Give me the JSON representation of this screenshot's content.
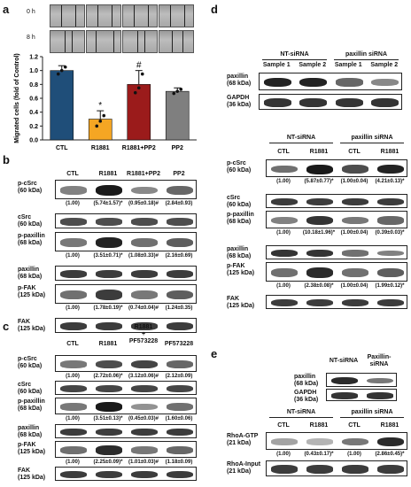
{
  "panels": {
    "a": {
      "letter": "a",
      "rows": [
        "0 h",
        "8 h"
      ],
      "chart_data": {
        "type": "bar",
        "categories": [
          "CTL",
          "R1881",
          "R1881+PP2",
          "PP2"
        ],
        "values": [
          1.0,
          0.3,
          0.8,
          0.7
        ],
        "errors": [
          0.07,
          0.12,
          0.2,
          0.05
        ],
        "dots": [
          [
            0.95,
            1.0,
            1.05
          ],
          [
            0.2,
            0.27,
            0.35
          ],
          [
            0.68,
            0.75,
            0.95
          ],
          [
            0.67,
            0.7,
            0.73
          ]
        ],
        "colors": [
          "#1f4e79",
          "#f5a623",
          "#9b1b1b",
          "#7f7f7f"
        ],
        "ylabel": "Migrated cells (fold of Control)",
        "ylim": [
          0,
          1.2
        ],
        "yticks": [
          "0.0",
          "0.2",
          "0.4",
          "0.6",
          "0.8",
          "1.0",
          "1.2"
        ],
        "annotations": [
          "",
          "*",
          "#",
          ""
        ]
      }
    },
    "b": {
      "letter": "b",
      "headers": [
        "CTL",
        "R1881",
        "R1881+PP2",
        "PP2"
      ],
      "blots": [
        {
          "label": "p-cSrc\n(60 kDa)",
          "intensities": [
            0.4,
            1.0,
            0.35,
            0.55
          ]
        },
        {
          "label": "cSrc\n(60 kDa)",
          "intensities": [
            0.7,
            0.7,
            0.7,
            0.7
          ]
        },
        {
          "label": "p-paxillin\n(68 kDa)",
          "intensities": [
            0.45,
            0.95,
            0.5,
            0.6
          ]
        },
        {
          "label": "paxillin\n(68 kDa)",
          "intensities": [
            0.8,
            0.8,
            0.8,
            0.8
          ]
        },
        {
          "label": "p-FAK\n(125 kDa)",
          "intensities": [
            0.5,
            0.8,
            0.45,
            0.6
          ]
        },
        {
          "label": "FAK\n(125 kDa)",
          "intensities": [
            0.8,
            0.8,
            0.8,
            0.8
          ]
        }
      ],
      "quant": {
        "0": [
          "(1.00)",
          "(5.74±1.57)*",
          "(0.95±0.18)#",
          "(2.84±0.93)"
        ],
        "2": [
          "(1.00)",
          "(3.51±0.71)*",
          "(1.08±0.33)#",
          "(2.16±0.69)"
        ],
        "4": [
          "(1.00)",
          "(1.78±0.19)*",
          "(0.74±0.04)#",
          "(1.24±0.35)"
        ]
      }
    },
    "c": {
      "letter": "c",
      "headers": [
        "CTL",
        "R1881",
        "R1881\n+\nPF573228",
        "PF573228"
      ],
      "blots": [
        {
          "label": "p-cSrc\n(60 kDa)",
          "intensities": [
            0.45,
            0.7,
            0.75,
            0.55
          ]
        },
        {
          "label": "cSrc\n(60 kDa)",
          "intensities": [
            0.75,
            0.75,
            0.75,
            0.75
          ]
        },
        {
          "label": "p-paxillin\n(68 kDa)",
          "intensities": [
            0.45,
            1.0,
            0.3,
            0.5
          ]
        },
        {
          "label": "paxillin\n(68 kDa)",
          "intensities": [
            0.8,
            0.8,
            0.8,
            0.8
          ]
        },
        {
          "label": "p-FAK\n(125 kDa)",
          "intensities": [
            0.5,
            0.9,
            0.45,
            0.55
          ]
        },
        {
          "label": "FAK\n(125 kDa)",
          "intensities": [
            0.8,
            0.8,
            0.8,
            0.8
          ]
        }
      ],
      "quant": {
        "0": [
          "(1.00)",
          "(2.72±0.06)*",
          "(3.12±0.06)#",
          "(2.12±0.09)"
        ],
        "2": [
          "(1.00)",
          "(3.51±0.13)*",
          "(0.45±0.03)#",
          "(1.60±0.06)"
        ],
        "4": [
          "(1.00)",
          "(2.25±0.09)*",
          "(1.01±0.03)#",
          "(1.18±0.09)"
        ]
      }
    },
    "d": {
      "letter": "d",
      "top": {
        "groups": [
          "NT-siRNA",
          "paxillin siRNA"
        ],
        "samples": [
          "Sample 1",
          "Sample 2",
          "Sample 1",
          "Sample 2"
        ],
        "blots": [
          {
            "label": "paxillin\n(68 kDa)",
            "intensities": [
              0.95,
              0.95,
              0.55,
              0.35
            ]
          },
          {
            "label": "GAPDH\n(36 kDa)",
            "intensities": [
              0.85,
              0.85,
              0.85,
              0.85
            ]
          }
        ]
      },
      "bottom": {
        "groups": [
          "NT-siRNA",
          "paxillin siRNA"
        ],
        "lanes": [
          "CTL",
          "R1881",
          "CTL",
          "R1881"
        ],
        "blots": [
          {
            "label": "p-cSrc\n(60 kDa)",
            "intensities": [
              0.5,
              1.0,
              0.7,
              0.95
            ]
          },
          {
            "label": "cSrc\n(60 kDa)",
            "intensities": [
              0.8,
              0.8,
              0.8,
              0.8
            ]
          },
          {
            "label": "p-paxillin\n(68 kDa)",
            "intensities": [
              0.4,
              0.85,
              0.45,
              0.55
            ]
          },
          {
            "label": "paxillin\n(68 kDa)",
            "intensities": [
              0.85,
              0.85,
              0.5,
              0.4
            ]
          },
          {
            "label": "p-FAK\n(125 kDa)",
            "intensities": [
              0.5,
              0.9,
              0.5,
              0.6
            ]
          },
          {
            "label": "FAK\n(125 kDa)",
            "intensities": [
              0.8,
              0.8,
              0.8,
              0.8
            ]
          }
        ],
        "quant": {
          "0": [
            "(1.00)",
            "(5.87±0.77)*",
            "(1.00±0.04)",
            "(4.21±0.13)*"
          ],
          "2": [
            "(1.00)",
            "(10.18±1.96)*",
            "(1.00±0.04)",
            "(0.39±0.03)*"
          ],
          "4": [
            "(1.00)",
            "(2.38±0.08)*",
            "(1.00±0.04)",
            "(1.99±0.12)*"
          ]
        }
      }
    },
    "e": {
      "letter": "e",
      "top": {
        "groups": [
          "NT-siRNA",
          "Paxillin-\nsiRNA"
        ],
        "blots": [
          {
            "label": "paxillin\n(68 kDa)",
            "intensities": [
              0.9,
              0.45
            ]
          },
          {
            "label": "GAPDH\n(36 kDa)",
            "intensities": [
              0.85,
              0.85
            ]
          }
        ]
      },
      "bottom": {
        "groups": [
          "NT-siRNA",
          "paxillin siRNA"
        ],
        "lanes": [
          "CTL",
          "R1881",
          "CTL",
          "R1881"
        ],
        "blots": [
          {
            "label": "RhoA-GTP\n(21 kDa)",
            "intensities": [
              0.2,
              0.1,
              0.45,
              0.9
            ]
          },
          {
            "label": "RhoA-Input\n(21 kDa)",
            "intensities": [
              0.8,
              0.8,
              0.8,
              0.8
            ]
          }
        ],
        "quant": {
          "0": [
            "(1.00)",
            "(0.43±0.17)*",
            "(1.00)",
            "(2.86±0.45)*"
          ]
        }
      }
    }
  }
}
